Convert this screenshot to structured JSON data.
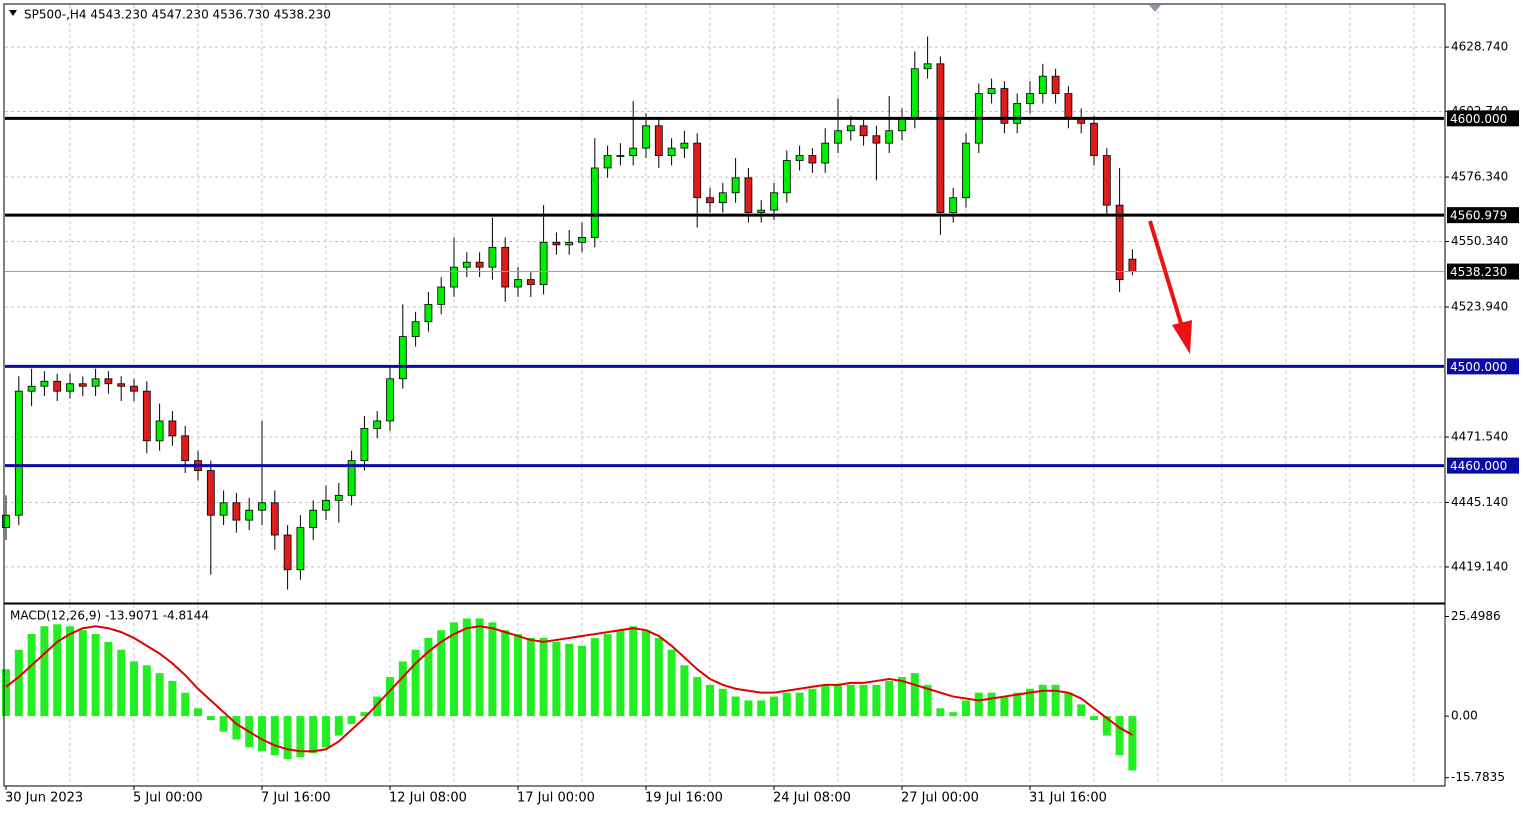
{
  "chart_data": [
    {
      "type": "candlestick",
      "title": "SP500-,H4  4543.230 4547.230 4536.730 4538.230",
      "categories": [
        "30 Jun 2023",
        null,
        null,
        null,
        null,
        null,
        null,
        null,
        null,
        null,
        "5 Jul 00:00",
        null,
        null,
        null,
        null,
        null,
        null,
        null,
        null,
        null,
        "7 Jul 16:00",
        null,
        null,
        null,
        null,
        null,
        null,
        null,
        null,
        null,
        "12 Jul 08:00",
        null,
        null,
        null,
        null,
        null,
        null,
        null,
        null,
        null,
        "17 Jul 00:00",
        null,
        null,
        null,
        null,
        null,
        null,
        null,
        null,
        null,
        "19 Jul 16:00",
        null,
        null,
        null,
        null,
        null,
        null,
        null,
        null,
        null,
        "24 Jul 08:00",
        null,
        null,
        null,
        null,
        null,
        null,
        null,
        null,
        null,
        "27 Jul 00:00",
        null,
        null,
        null,
        null,
        null,
        null,
        null,
        null,
        null,
        "31 Jul 16:00",
        null,
        null,
        null,
        null,
        null,
        null,
        null,
        null
      ],
      "open": [
        4435,
        4440,
        4490,
        4492,
        4494,
        4490,
        4493,
        4492,
        4495,
        4493,
        4492,
        4490,
        4470,
        4478,
        4472,
        4462,
        4458,
        4440,
        4445,
        4438,
        4442,
        4445,
        4432,
        4418,
        4435,
        4442,
        4446,
        4448,
        4462,
        4475,
        4478,
        4495,
        4512,
        4518,
        4525,
        4532,
        4540,
        4542,
        4540,
        4548,
        4532,
        4535,
        4533,
        4550,
        4549,
        4550,
        4552,
        4580,
        4585,
        4585,
        4588,
        4597,
        4585,
        4588,
        4590,
        4568,
        4566,
        4570,
        4576,
        4562,
        4563,
        4570,
        4583,
        4585,
        4582,
        4590,
        4595,
        4597,
        4593,
        4590,
        4595,
        4600,
        4620,
        4622,
        4562,
        4568,
        4590,
        4610,
        4612,
        4598,
        4606,
        4610,
        4617,
        4610,
        4600,
        4598,
        4585,
        4565,
        4543.23
      ],
      "high": [
        4448,
        4496,
        4499,
        4498,
        4497,
        4497,
        4496,
        4499,
        4498,
        4496,
        4495,
        4494,
        4485,
        4482,
        4476,
        4466,
        4462,
        4450,
        4449,
        4447,
        4478,
        4450,
        4436,
        4440,
        4446,
        4452,
        4453,
        4466,
        4480,
        4482,
        4500,
        4525,
        4522,
        4530,
        4536,
        4552,
        4546,
        4546,
        4560,
        4552,
        4540,
        4538,
        4565,
        4554,
        4555,
        4558,
        4592,
        4589,
        4590,
        4607,
        4602,
        4600,
        4592,
        4595,
        4594,
        4572,
        4574,
        4584,
        4580,
        4567,
        4574,
        4587,
        4589,
        4588,
        4596,
        4608,
        4601,
        4600,
        4597,
        4609,
        4604,
        4627,
        4633,
        4625,
        4572,
        4594,
        4614,
        4616,
        4615,
        4610,
        4615,
        4622,
        4620,
        4613,
        4604,
        4601,
        4588,
        4580,
        4547.23
      ],
      "low": [
        4430,
        4436,
        4484,
        4488,
        4486,
        4487,
        4488,
        4488,
        4489,
        4486,
        4486,
        4465,
        4466,
        4468,
        4457,
        4454,
        4416,
        4436,
        4433,
        4434,
        4436,
        4426,
        4410,
        4414,
        4430,
        4438,
        4437,
        4444,
        4458,
        4471,
        4474,
        4491,
        4508,
        4514,
        4521,
        4528,
        4536,
        4536,
        4535,
        4526,
        4528,
        4528,
        4529,
        4545,
        4545,
        4546,
        4548,
        4576,
        4581,
        4581,
        4584,
        4580,
        4581,
        4584,
        4556,
        4562,
        4562,
        4566,
        4558,
        4558,
        4559,
        4566,
        4579,
        4578,
        4578,
        4586,
        4591,
        4589,
        4575,
        4586,
        4591,
        4596,
        4616,
        4553,
        4558,
        4564,
        4586,
        4606,
        4594,
        4594,
        4602,
        4606,
        4606,
        4596,
        4594,
        4581,
        4561,
        4530,
        4536.73
      ],
      "close": [
        4440,
        4490,
        4492,
        4494,
        4490,
        4493,
        4492,
        4495,
        4493,
        4492,
        4490,
        4470,
        4478,
        4472,
        4462,
        4458,
        4440,
        4445,
        4438,
        4442,
        4445,
        4432,
        4418,
        4435,
        4442,
        4446,
        4448,
        4462,
        4475,
        4478,
        4495,
        4512,
        4518,
        4525,
        4532,
        4540,
        4542,
        4540,
        4548,
        4532,
        4535,
        4533,
        4550,
        4549,
        4550,
        4552,
        4580,
        4585,
        4585,
        4588,
        4597,
        4585,
        4588,
        4590,
        4568,
        4566,
        4570,
        4576,
        4562,
        4563,
        4570,
        4583,
        4585,
        4582,
        4590,
        4595,
        4597,
        4593,
        4590,
        4595,
        4600,
        4620,
        4622,
        4562,
        4568,
        4590,
        4610,
        4612,
        4598,
        4606,
        4610,
        4617,
        4610,
        4600,
        4598,
        4585,
        4565,
        4535,
        4538.23
      ],
      "up_color": "#00ee00",
      "down_color": "#dd1c1c",
      "ylim": [
        4404.6,
        4645.7
      ],
      "yticks": [
        {
          "value": 4628.74,
          "label": "4628.740"
        },
        {
          "value": 4602.74,
          "label": "4602.740"
        },
        {
          "value": 4576.34,
          "label": "4576.340"
        },
        {
          "value": 4550.34,
          "label": "4550.340"
        },
        {
          "value": 4523.94,
          "label": "4523.940"
        },
        {
          "value": 4471.54,
          "label": "4471.540"
        },
        {
          "value": 4445.14,
          "label": "4445.140"
        },
        {
          "value": 4419.14,
          "label": "4419.140"
        }
      ],
      "grid": true,
      "levels": [
        {
          "value": 4600,
          "label": "4600.000",
          "color": "#000000"
        },
        {
          "value": 4560.979,
          "label": "4560.979",
          "color": "#000000"
        },
        {
          "value": 4500,
          "label": "4500.000",
          "color": "#0a0aa8"
        },
        {
          "value": 4460,
          "label": "4460.000",
          "color": "#0a0aa8"
        }
      ],
      "current_price": {
        "value": 4538.23,
        "label": "4538.230"
      }
    },
    {
      "type": "macd",
      "title": "MACD(12,26,9) -13.9071 -4.8144",
      "histogram": {
        "color": "#22ee22",
        "values": [
          12,
          17,
          21,
          23,
          23.5,
          23,
          22,
          21,
          19,
          17,
          14,
          13,
          11,
          9,
          6,
          2,
          -1,
          -4,
          -6,
          -8,
          -9,
          -10,
          -11,
          -10.5,
          -9.5,
          -8,
          -5,
          -2,
          1,
          5,
          10,
          14,
          17,
          20,
          22,
          24,
          25,
          25,
          24,
          22,
          21,
          20,
          20,
          19,
          18.5,
          18,
          20,
          21,
          22,
          23,
          22,
          20,
          17,
          13,
          10,
          8,
          7,
          5,
          4,
          4,
          5,
          6,
          6,
          7,
          8,
          8,
          8,
          8,
          8,
          9,
          10,
          11,
          8,
          2,
          1,
          4,
          6,
          6,
          5,
          6,
          7,
          8,
          8,
          6,
          3,
          -1,
          -5,
          -10,
          -13.9071
        ]
      },
      "signal": {
        "color": "#e00000",
        "values": [
          7.5,
          10,
          13,
          16,
          19,
          21,
          22.5,
          23,
          22.5,
          21.5,
          20,
          18,
          16,
          13.5,
          10.5,
          7,
          4,
          1,
          -2,
          -4,
          -6,
          -7.5,
          -8.5,
          -9,
          -9,
          -8.5,
          -6.5,
          -3.5,
          -0.5,
          3,
          6.5,
          10,
          13.5,
          16.5,
          19,
          21,
          22.5,
          23,
          22.5,
          21.5,
          20.5,
          19.5,
          19,
          19.5,
          20,
          20.5,
          21,
          21.5,
          22,
          22.5,
          22,
          20.5,
          18,
          15,
          12,
          9.5,
          8,
          7,
          6.5,
          6,
          6,
          6.5,
          7,
          7.5,
          8,
          8,
          8.5,
          8.5,
          9,
          9.5,
          9,
          8,
          7,
          6,
          5,
          4.5,
          4,
          4.5,
          5,
          5.5,
          6,
          6.5,
          6.5,
          6,
          4.5,
          2,
          -0.5,
          -3,
          -4.8144
        ]
      },
      "ylim": [
        -17.9,
        28.7
      ],
      "yticks": [
        25.4986,
        {
          "value": 0,
          "label": "0.00"
        },
        -15.7835
      ]
    }
  ]
}
